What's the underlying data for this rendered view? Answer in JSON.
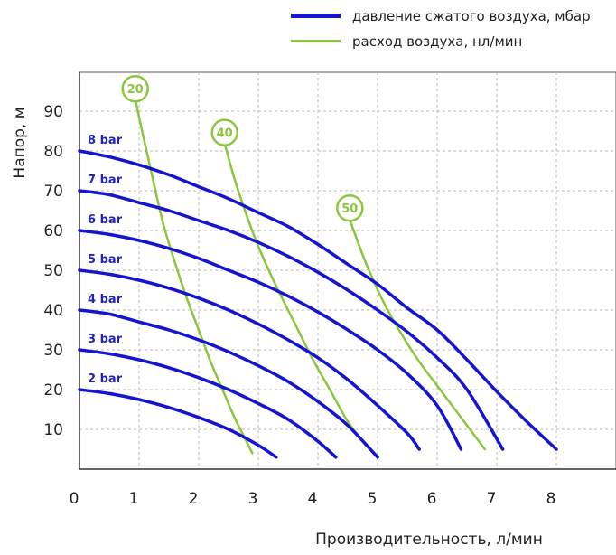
{
  "chart_data": {
    "type": "line",
    "title": "",
    "xlabel": "Производительность, л/мин",
    "ylabel": "Напор, м",
    "xlim": [
      0,
      9
    ],
    "ylim": [
      0,
      100
    ],
    "x_ticks": [
      "0",
      "1",
      "2",
      "3",
      "4",
      "5",
      "6",
      "7",
      "8"
    ],
    "y_ticks": [
      "10",
      "20",
      "30",
      "40",
      "50",
      "60",
      "70",
      "80",
      "90"
    ],
    "grid": true,
    "legend": {
      "placement": "top-right",
      "entries": [
        {
          "label": "давление сжатого воздуха, мбар",
          "color": "#1515d0"
        },
        {
          "label": "расход воздуха, нл/мин",
          "color": "#8cc63f"
        }
      ]
    },
    "series": [
      {
        "name": "2 bar",
        "group": "pressure",
        "color": "#1515d0",
        "x": [
          0,
          0.5,
          1.0,
          1.5,
          2.0,
          2.5,
          3.0,
          3.3
        ],
        "y": [
          20,
          19,
          17.5,
          15.5,
          13,
          10,
          6,
          3
        ]
      },
      {
        "name": "3 bar",
        "group": "pressure",
        "color": "#1515d0",
        "x": [
          0,
          0.5,
          1.0,
          1.5,
          2.0,
          2.5,
          3.0,
          3.5,
          4.0,
          4.3
        ],
        "y": [
          30,
          29,
          27.5,
          25.5,
          23,
          20,
          16.5,
          12.5,
          7,
          3
        ]
      },
      {
        "name": "4 bar",
        "group": "pressure",
        "color": "#1515d0",
        "x": [
          0,
          0.5,
          1.0,
          1.5,
          2.0,
          2.5,
          3.0,
          3.5,
          4.0,
          4.5,
          5.0
        ],
        "y": [
          40,
          39,
          37,
          35,
          32.5,
          29.5,
          26,
          22,
          17,
          11,
          3
        ]
      },
      {
        "name": "5 bar",
        "group": "pressure",
        "color": "#1515d0",
        "x": [
          0,
          0.5,
          1.0,
          1.5,
          2.0,
          2.5,
          3.0,
          3.5,
          4.0,
          4.5,
          5.0,
          5.5,
          5.7
        ],
        "y": [
          50,
          49,
          47.5,
          45.5,
          43,
          40,
          36.5,
          32.5,
          28,
          22.5,
          16,
          9,
          5
        ]
      },
      {
        "name": "6 bar",
        "group": "pressure",
        "color": "#1515d0",
        "x": [
          0,
          0.5,
          1.0,
          1.5,
          2.0,
          2.5,
          3.0,
          3.5,
          4.0,
          4.5,
          5.0,
          5.5,
          6.0,
          6.4
        ],
        "y": [
          60,
          59,
          57.5,
          55.5,
          53,
          50,
          47,
          43.5,
          39.5,
          35,
          30,
          24,
          16,
          5
        ]
      },
      {
        "name": "7 bar",
        "group": "pressure",
        "color": "#1515d0",
        "x": [
          0,
          0.5,
          1.0,
          1.5,
          2.0,
          2.5,
          3.0,
          3.5,
          4.0,
          4.5,
          5.0,
          5.5,
          6.0,
          6.5,
          7.1
        ],
        "y": [
          70,
          69,
          67,
          65,
          62.5,
          60,
          57,
          53.5,
          49.5,
          45,
          40,
          34.5,
          28,
          20,
          5
        ]
      },
      {
        "name": "8 bar",
        "group": "pressure",
        "color": "#1515d0",
        "x": [
          0,
          0.5,
          1.0,
          1.5,
          2.0,
          2.5,
          3.0,
          3.5,
          4.0,
          4.5,
          5.0,
          5.5,
          6.0,
          6.5,
          7.0,
          7.5,
          8.0
        ],
        "y": [
          80,
          78.5,
          76.5,
          74,
          71,
          68,
          64.5,
          61,
          56.5,
          51.5,
          46.5,
          40.5,
          35,
          27.5,
          19.5,
          12,
          5
        ]
      },
      {
        "name": "20",
        "group": "flow",
        "color": "#8cc63f",
        "x": [
          0.95,
          1.05,
          1.2,
          1.4,
          1.6,
          1.8,
          2.0,
          2.2,
          2.4,
          2.6,
          2.8,
          2.9
        ],
        "y": [
          92,
          85,
          75,
          62,
          52,
          43,
          35,
          27,
          20,
          13,
          7,
          4
        ]
      },
      {
        "name": "40",
        "group": "flow",
        "color": "#8cc63f",
        "x": [
          2.45,
          2.6,
          2.8,
          3.0,
          3.3,
          3.6,
          3.9,
          4.2,
          4.5,
          4.8
        ],
        "y": [
          81,
          73,
          64,
          56,
          46,
          37,
          28,
          20,
          12,
          6
        ]
      },
      {
        "name": "50",
        "group": "flow",
        "color": "#8cc63f",
        "x": [
          4.55,
          4.8,
          5.1,
          5.4,
          5.7,
          6.0,
          6.3,
          6.6,
          6.8
        ],
        "y": [
          62,
          52,
          42,
          34,
          27,
          21,
          15,
          9,
          5
        ]
      }
    ],
    "pressure_labels": [
      "2 bar",
      "3 bar",
      "4 bar",
      "5 bar",
      "6 bar",
      "7 bar",
      "8 bar"
    ],
    "flow_labels": [
      "20",
      "40",
      "50"
    ]
  }
}
